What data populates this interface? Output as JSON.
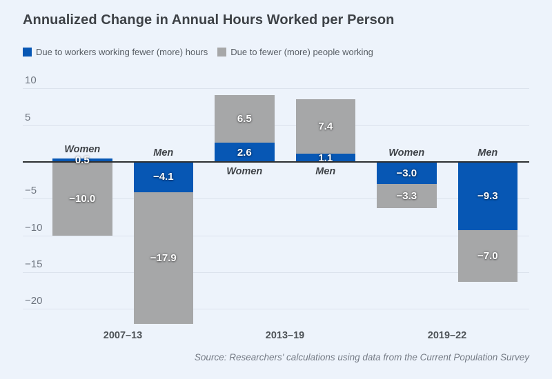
{
  "title": "Annualized Change in Annual Hours Worked per Person",
  "legend": [
    {
      "label": "Due to workers working fewer (more) hours",
      "color": "#0757b4"
    },
    {
      "label": "Due to fewer (more) people working",
      "color": "#a6a7a8"
    }
  ],
  "source_note": "Source: Researchers' calculations using data from the Current Population Survey",
  "chart_data": {
    "type": "bar",
    "stacked": true,
    "orientation": "vertical",
    "title": "Annualized Change in Annual Hours Worked per Person",
    "xlabel": "",
    "ylabel": "",
    "ylim": [
      -23,
      11
    ],
    "y_ticks": [
      10,
      5,
      -5,
      -10,
      -15,
      -20
    ],
    "grid": "horizontal",
    "legend_position": "top-left",
    "series": [
      {
        "name": "Due to workers working fewer (more) hours",
        "key": "hours",
        "color": "#0757b4"
      },
      {
        "name": "Due to fewer (more) people working",
        "key": "people",
        "color": "#a6a7a8"
      }
    ],
    "categories": [
      "2007–13",
      "2013–19",
      "2019–22"
    ],
    "groups": [
      {
        "period": "2007–13",
        "bars": [
          {
            "label": "Women",
            "hours": 0.5,
            "people": -10.0
          },
          {
            "label": "Men",
            "hours": -4.1,
            "people": -17.9
          }
        ]
      },
      {
        "period": "2013–19",
        "bars": [
          {
            "label": "Women",
            "hours": 2.6,
            "people": 6.5
          },
          {
            "label": "Men",
            "hours": 1.1,
            "people": 7.4
          }
        ]
      },
      {
        "period": "2019–22",
        "bars": [
          {
            "label": "Women",
            "hours": -3.0,
            "people": -3.3
          },
          {
            "label": "Men",
            "hours": -9.3,
            "people": -7.0
          }
        ]
      }
    ]
  }
}
